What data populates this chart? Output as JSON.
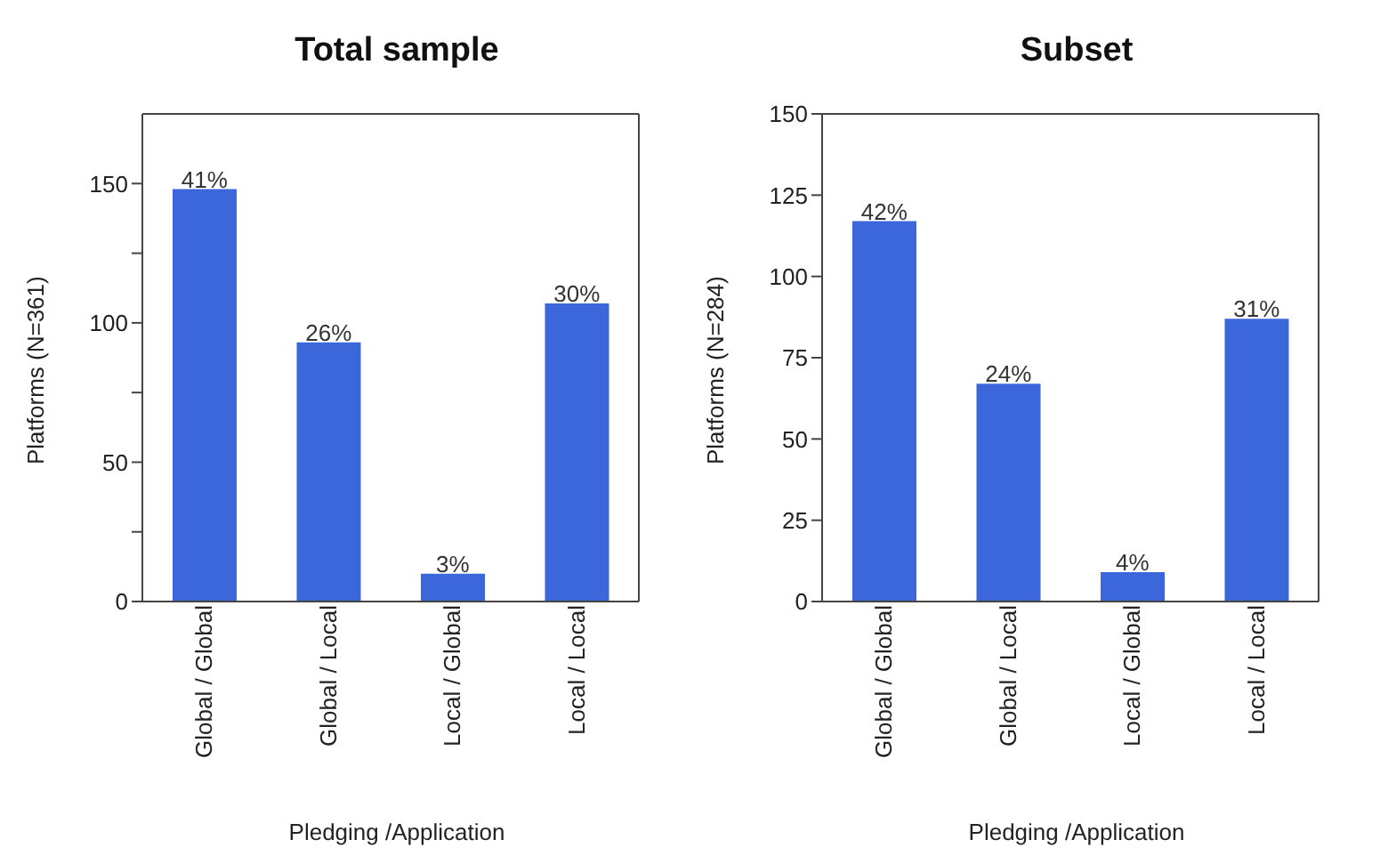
{
  "chart_data": [
    {
      "type": "bar",
      "title": "Total sample",
      "xlabel": "Pledging /Application",
      "ylabel": "Platforms (N=361)",
      "categories": [
        "Global / Global",
        "Global / Local",
        "Local / Global",
        "Local / Local"
      ],
      "values": [
        148,
        93,
        10,
        107
      ],
      "color": "#3b67db",
      "ylim": [
        0,
        175
      ],
      "yticks": [
        0,
        {
          "value": 25,
          "label": null
        },
        50,
        {
          "value": 75,
          "label": null
        },
        100,
        {
          "value": 125,
          "label": null
        },
        150
      ],
      "grid": false,
      "legend": false,
      "annotations": [
        {
          "text": "41%",
          "x": "Global / Global",
          "y": 148
        },
        {
          "text": "26%",
          "x": "Global / Local",
          "y": 93
        },
        {
          "text": "3%",
          "x": "Local / Global",
          "y": 10
        },
        {
          "text": "30%",
          "x": "Local / Local",
          "y": 107
        }
      ]
    },
    {
      "type": "bar",
      "title": "Subset",
      "xlabel": "Pledging /Application",
      "ylabel": "Platforms (N=284)",
      "categories": [
        "Global / Global",
        "Global / Local",
        "Local / Global",
        "Local / Local"
      ],
      "values": [
        117,
        67,
        9,
        87
      ],
      "color": "#3b67db",
      "ylim": [
        0,
        150
      ],
      "yticks": [
        0,
        25,
        50,
        75,
        100,
        125,
        150
      ],
      "grid": false,
      "legend": false,
      "annotations": [
        {
          "text": "42%",
          "x": "Global / Global",
          "y": 117
        },
        {
          "text": "24%",
          "x": "Global / Local",
          "y": 67
        },
        {
          "text": "4%",
          "x": "Local / Global",
          "y": 9
        },
        {
          "text": "31%",
          "x": "Local / Local",
          "y": 87
        }
      ]
    }
  ]
}
